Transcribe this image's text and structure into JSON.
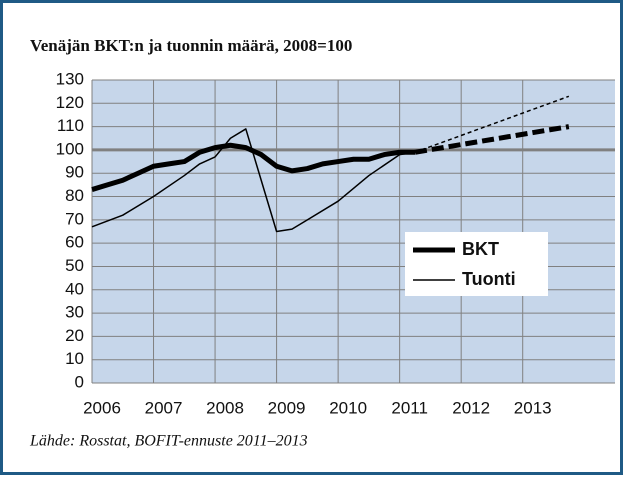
{
  "chart_data": {
    "type": "line",
    "title": "Venäjän BKT:n ja tuonnin määrä, 2008=100",
    "source": "Lähde: Rosstat, BOFIT-ennuste 2011–2013",
    "xlim": [
      2006,
      2014.5
    ],
    "xticks": [
      2006,
      2007,
      2008,
      2009,
      2010,
      2011,
      2012,
      2013
    ],
    "ylim": [
      0,
      130
    ],
    "yticks": [
      0,
      10,
      20,
      30,
      40,
      50,
      60,
      70,
      80,
      90,
      100,
      110,
      120,
      130
    ],
    "reference_line": 100,
    "grid": true,
    "legend": "right",
    "series": [
      {
        "name": "BKT",
        "color": "#000000",
        "width": 5,
        "x": [
          2006.0,
          2006.25,
          2006.5,
          2006.75,
          2007.0,
          2007.25,
          2007.5,
          2007.75,
          2008.0,
          2008.25,
          2008.5,
          2008.75,
          2009.0,
          2009.25,
          2009.5,
          2009.75,
          2010.0,
          2010.25,
          2010.5,
          2010.75,
          2011.0,
          2011.25
        ],
        "values": [
          83,
          85,
          87,
          90,
          93,
          94,
          95,
          99,
          101,
          102,
          101,
          98,
          93,
          91,
          92,
          94,
          95,
          96,
          96,
          98,
          99,
          99
        ],
        "forecast_x": [
          2011.25,
          2013.75
        ],
        "forecast_values": [
          99,
          110
        ]
      },
      {
        "name": "Tuonti",
        "color": "#000000",
        "width": 1.5,
        "x": [
          2006.0,
          2006.5,
          2007.0,
          2007.5,
          2007.75,
          2008.0,
          2008.25,
          2008.5,
          2009.0,
          2009.25,
          2009.5,
          2010.0,
          2010.5,
          2011.0,
          2011.25
        ],
        "values": [
          67,
          72,
          80,
          89,
          94,
          97,
          105,
          109,
          65,
          66,
          70,
          78,
          89,
          98,
          99
        ],
        "forecast_x": [
          2011.25,
          2013.75
        ],
        "forecast_values": [
          99,
          123
        ]
      }
    ]
  }
}
